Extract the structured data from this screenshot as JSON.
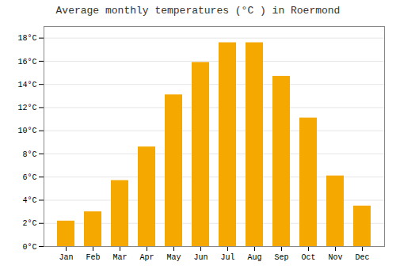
{
  "chart_data": {
    "type": "bar",
    "title": "Average monthly temperatures (°C ) in Roermond",
    "categories": [
      "Jan",
      "Feb",
      "Mar",
      "Apr",
      "May",
      "Jun",
      "Jul",
      "Aug",
      "Sep",
      "Oct",
      "Nov",
      "Dec"
    ],
    "values": [
      2.2,
      3.0,
      5.7,
      8.6,
      13.1,
      15.9,
      17.6,
      17.6,
      14.7,
      11.1,
      6.1,
      3.5
    ],
    "color": "#F5A800",
    "ylim": [
      0,
      19
    ],
    "yticks": [
      {
        "value": 0,
        "label": "0°C"
      },
      {
        "value": 2,
        "label": "2°C"
      },
      {
        "value": 4,
        "label": "4°C"
      },
      {
        "value": 6,
        "label": "6°C"
      },
      {
        "value": 8,
        "label": "8°C"
      },
      {
        "value": 10,
        "label": "10°C"
      },
      {
        "value": 12,
        "label": "12°C"
      },
      {
        "value": 14,
        "label": "14°C"
      },
      {
        "value": 16,
        "label": "16°C"
      },
      {
        "value": 18,
        "label": "18°C"
      }
    ],
    "grid": true
  }
}
